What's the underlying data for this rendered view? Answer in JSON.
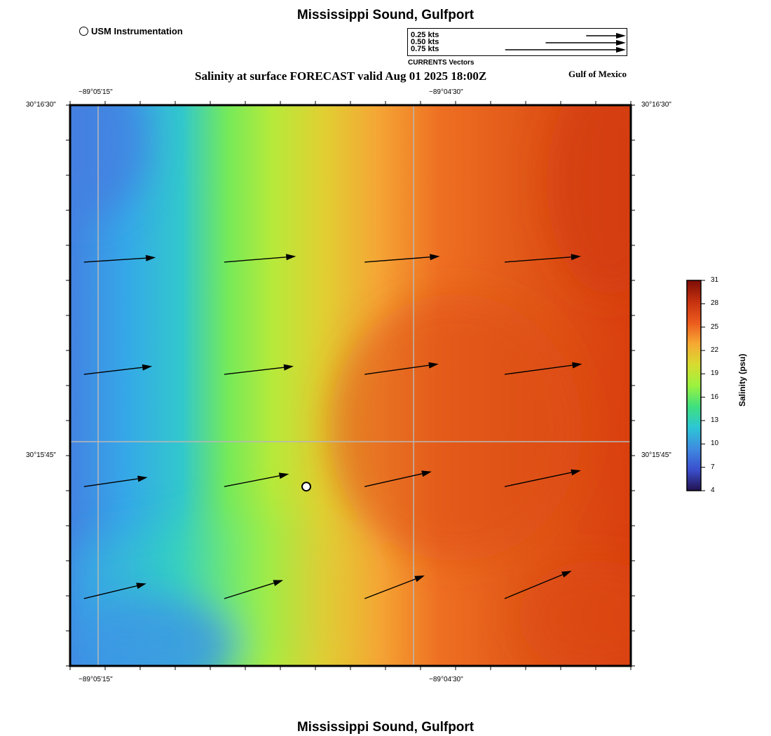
{
  "title": "Mississippi Sound, Gulfport",
  "subtitle": "Salinity at surface FORECAST valid Aug 01 2025 18:00Z",
  "region_label": "Gulf of Mexico",
  "legend": {
    "usm_label": "USM Instrumentation",
    "vector_scale": [
      {
        "label": "0.25 kts",
        "speed_kts": 0.25
      },
      {
        "label": "0.50 kts",
        "speed_kts": 0.5
      },
      {
        "label": "0.75 kts",
        "speed_kts": 0.75
      }
    ],
    "vector_caption": "CURRENTS Vectors"
  },
  "axes": {
    "lon_ticks": [
      {
        "label": "−89°05'15\"",
        "lon": -89.0875
      },
      {
        "label": "−89°04'30\"",
        "lon": -89.075
      }
    ],
    "lat_ticks": [
      {
        "label": "30°16'30\"",
        "lat": 30.275
      },
      {
        "label": "30°15'45\"",
        "lat": 30.2625
      }
    ],
    "lon_range": [
      -89.08861,
      -89.06639
    ],
    "lat_range": [
      30.25417,
      30.275
    ]
  },
  "colorbar": {
    "title": "Salinity (psu)",
    "ticks": [
      4,
      7,
      10,
      13,
      16,
      19,
      22,
      25,
      28,
      31
    ],
    "range": [
      4,
      31
    ],
    "colors": [
      "#22124f",
      "#3b4fcf",
      "#3e8be0",
      "#2cc6d6",
      "#3fe07f",
      "#9cf23e",
      "#d8dc30",
      "#f6a833",
      "#ec5a1d",
      "#c5310f",
      "#7d0d06"
    ]
  },
  "salinity_field_colors": {
    "west_low": "#4580e0",
    "mid": "#9ef244",
    "east_high": "#dc4712"
  },
  "usm_station": {
    "lon": -89.07925,
    "lat": 30.26083
  },
  "current_vectors": [
    {
      "lon": -89.08806,
      "lat": 30.26917,
      "u": 0.62,
      "v": 0.04
    },
    {
      "lon": -89.0825,
      "lat": 30.26917,
      "u": 0.62,
      "v": 0.05
    },
    {
      "lon": -89.07694,
      "lat": 30.26917,
      "u": 0.65,
      "v": 0.05
    },
    {
      "lon": -89.07139,
      "lat": 30.26917,
      "u": 0.66,
      "v": 0.05
    },
    {
      "lon": -89.08806,
      "lat": 30.265,
      "u": 0.59,
      "v": 0.07
    },
    {
      "lon": -89.0825,
      "lat": 30.265,
      "u": 0.6,
      "v": 0.07
    },
    {
      "lon": -89.07694,
      "lat": 30.265,
      "u": 0.64,
      "v": 0.09
    },
    {
      "lon": -89.07139,
      "lat": 30.265,
      "u": 0.67,
      "v": 0.09
    },
    {
      "lon": -89.08806,
      "lat": 30.26083,
      "u": 0.55,
      "v": 0.08
    },
    {
      "lon": -89.0825,
      "lat": 30.26083,
      "u": 0.56,
      "v": 0.11
    },
    {
      "lon": -89.07694,
      "lat": 30.26083,
      "u": 0.58,
      "v": 0.13
    },
    {
      "lon": -89.07139,
      "lat": 30.26083,
      "u": 0.66,
      "v": 0.14
    },
    {
      "lon": -89.08806,
      "lat": 30.25667,
      "u": 0.54,
      "v": 0.13
    },
    {
      "lon": -89.0825,
      "lat": 30.25667,
      "u": 0.51,
      "v": 0.16
    },
    {
      "lon": -89.07694,
      "lat": 30.25667,
      "u": 0.52,
      "v": 0.2
    },
    {
      "lon": -89.07139,
      "lat": 30.25667,
      "u": 0.58,
      "v": 0.24
    }
  ]
}
